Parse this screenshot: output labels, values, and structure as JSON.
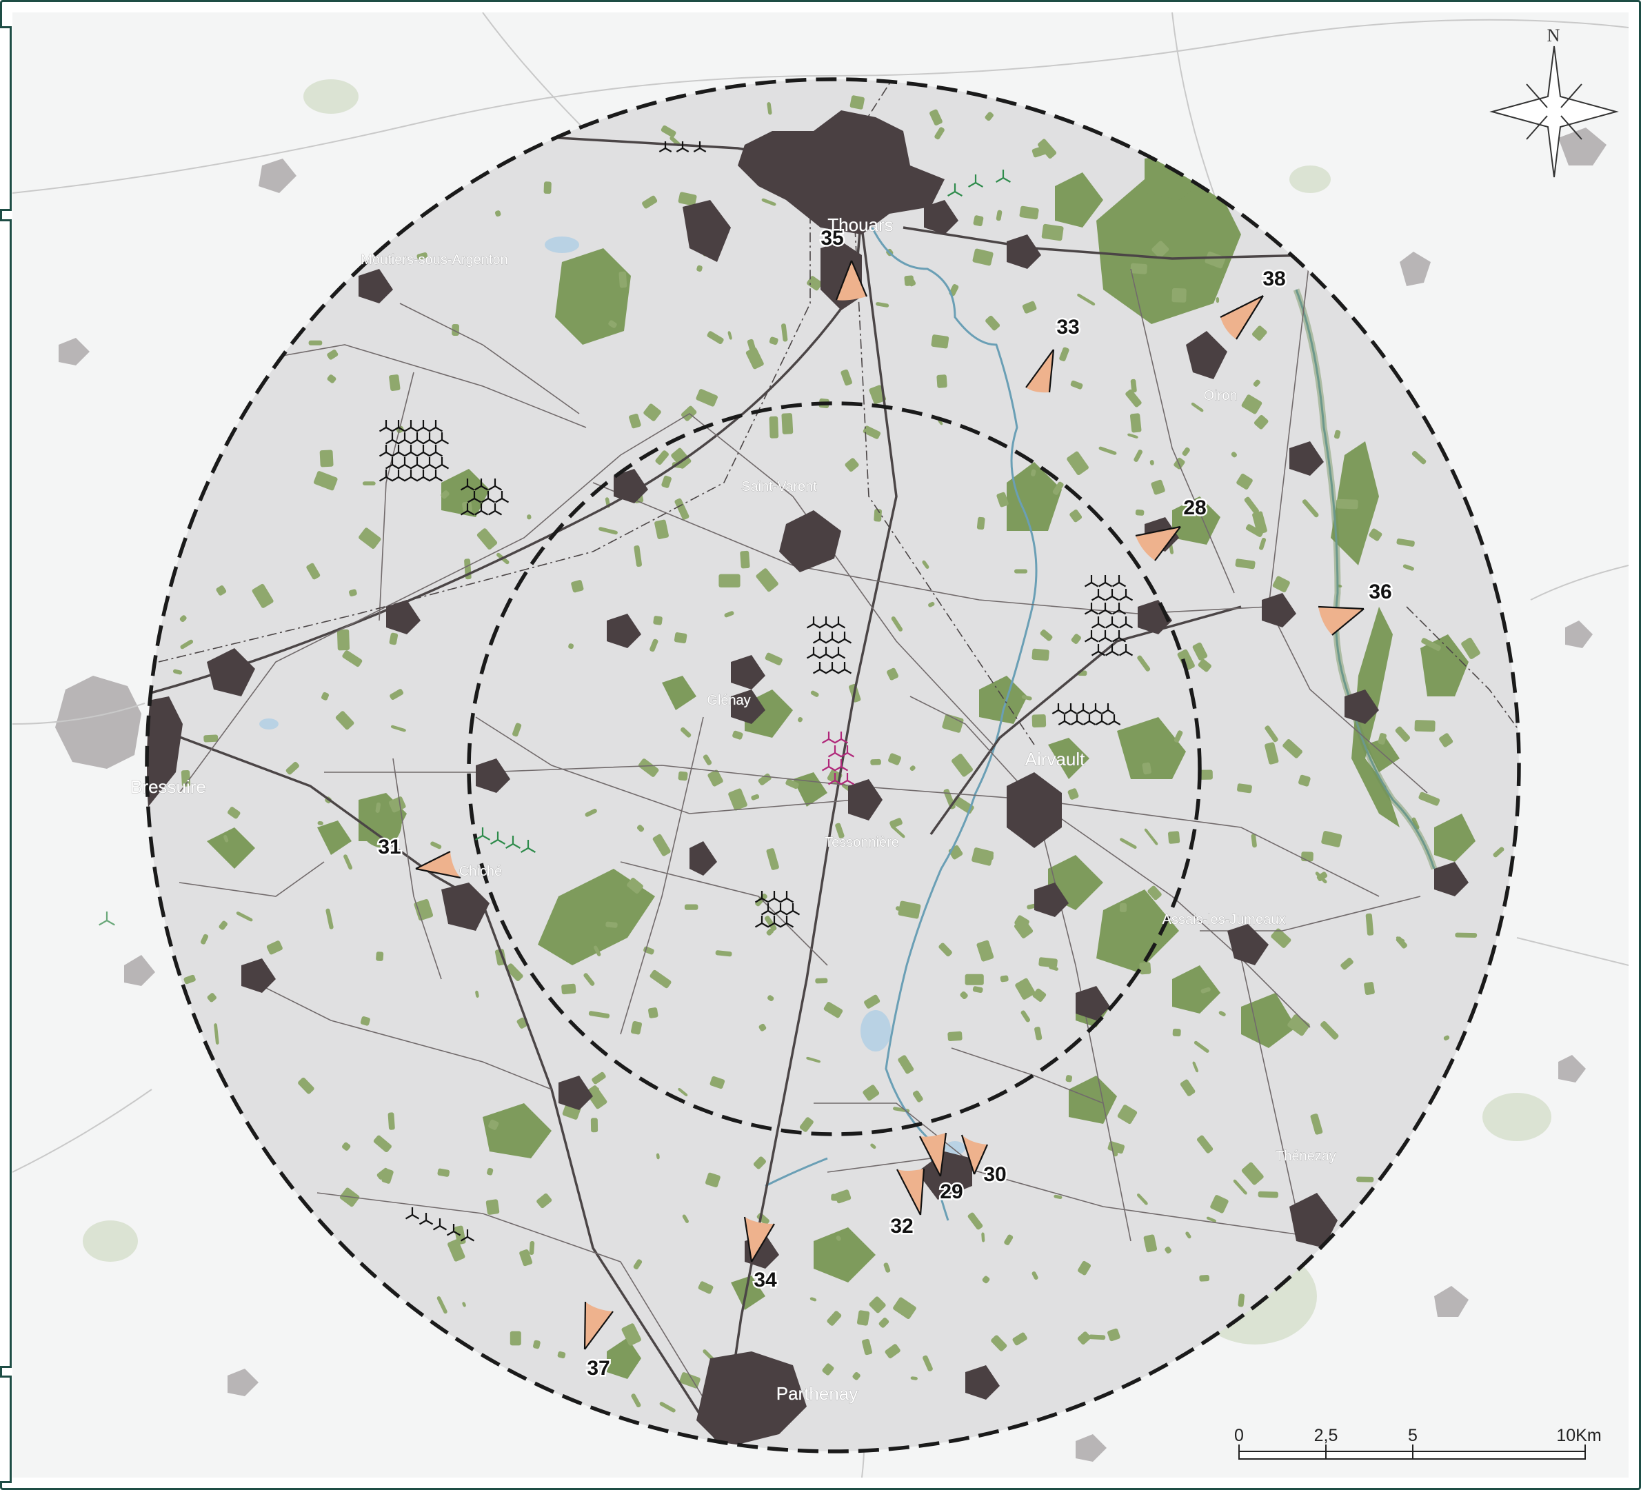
{
  "map": {
    "compass_label": "N",
    "colors": {
      "background": "#f4f5f5",
      "study_area": "#e0e0e1",
      "forest": "#7e9b5c",
      "town": "#4a4042",
      "outside_town": "#b8b5b6",
      "water": "#6a9fb5",
      "road": "#4b4546",
      "viewpoint_fill": "#eeb28d",
      "wind_black": "#111111",
      "wind_green": "#2e8b4b",
      "wind_magenta": "#b0287a",
      "frame": "#1e4d45"
    },
    "towns": [
      {
        "id": "thouars",
        "label": "Thouars",
        "size": "large"
      },
      {
        "id": "moutiers",
        "label": "Moutiers-sous-Argenton",
        "size": "small"
      },
      {
        "id": "oiron",
        "label": "Oiron",
        "size": "small"
      },
      {
        "id": "saint-varent",
        "label": "Saint-Varent",
        "size": "small"
      },
      {
        "id": "glenay",
        "label": "Glénay",
        "size": "small"
      },
      {
        "id": "airvault",
        "label": "Airvault",
        "size": "large"
      },
      {
        "id": "bressuire",
        "label": "Bressuire",
        "size": "large"
      },
      {
        "id": "chiche",
        "label": "Chiché",
        "size": "small"
      },
      {
        "id": "tessonniere",
        "label": "Tessonnière",
        "size": "small"
      },
      {
        "id": "assais",
        "label": "Assais-les-Jumeaux",
        "size": "small"
      },
      {
        "id": "thenezay",
        "label": "Thénezay",
        "size": "small"
      },
      {
        "id": "parthenay",
        "label": "Parthenay",
        "size": "large"
      }
    ],
    "viewpoints": [
      {
        "id": "vp-28",
        "label": "28"
      },
      {
        "id": "vp-29",
        "label": "29"
      },
      {
        "id": "vp-30",
        "label": "30"
      },
      {
        "id": "vp-31",
        "label": "31"
      },
      {
        "id": "vp-32",
        "label": "32"
      },
      {
        "id": "vp-33",
        "label": "33"
      },
      {
        "id": "vp-34",
        "label": "34"
      },
      {
        "id": "vp-35",
        "label": "35"
      },
      {
        "id": "vp-36",
        "label": "36"
      },
      {
        "id": "vp-37",
        "label": "37"
      },
      {
        "id": "vp-38",
        "label": "38"
      }
    ],
    "scale_bar": {
      "ticks": [
        "0",
        "2,5",
        "5",
        "10Km"
      ]
    }
  }
}
